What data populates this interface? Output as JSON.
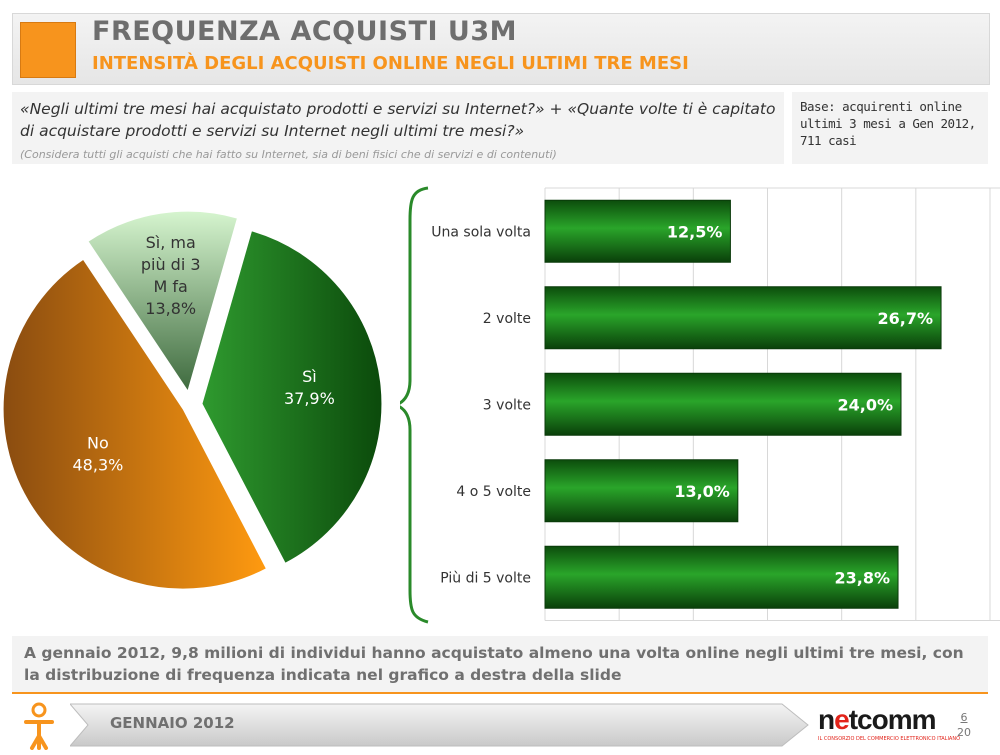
{
  "header": {
    "title": "FREQUENZA ACQUISTI U3M",
    "subtitle": "INTENSITÀ DEGLI ACQUISTI ONLINE NEGLI ULTIMI TRE MESI"
  },
  "question": {
    "text": "«Negli ultimi tre mesi hai acquistato prodotti e servizi su Internet?» + «Quante volte ti è capitato di acquistare prodotti e servizi su Internet negli ultimi tre mesi?»",
    "note": "(Considera tutti gli acquisti che hai fatto su Internet, sia di beni fisici che di servizi e di contenuti)"
  },
  "base": {
    "text": "Base: acquirenti online ultimi 3 mesi a Gen 2012, 711 casi"
  },
  "chart_data": [
    {
      "type": "pie",
      "title": "",
      "slices": [
        {
          "label": "Sì",
          "value": 37.9,
          "value_label": "37,9%",
          "color": "#1f7a1f"
        },
        {
          "label": "No",
          "value": 48.3,
          "value_label": "48,3%",
          "color": "#f7941d"
        },
        {
          "label": "Sì, ma più di 3 M fa",
          "value": 13.8,
          "value_label": "13,8%",
          "color": "#c8eec0"
        }
      ]
    },
    {
      "type": "bar",
      "orientation": "horizontal",
      "title": "",
      "categories": [
        "Una sola volta",
        "2 volte",
        "3 volte",
        "4 o 5 volte",
        "Più di 5 volte"
      ],
      "values": [
        12.5,
        26.7,
        24.0,
        13.0,
        23.8
      ],
      "value_labels": [
        "12,5%",
        "26,7%",
        "24,0%",
        "13,0%",
        "23,8%"
      ],
      "xlim": [
        0,
        30
      ],
      "grid": true,
      "color": "#1f7a1f"
    }
  ],
  "footer": {
    "note": "A gennaio 2012, 9,8 milioni di individui hanno acquistato almeno una volta online negli ultimi tre mesi, con la distribuzione di frequenza indicata nel grafico a destra della slide",
    "date": "GENNAIO 2012",
    "logo_pre": "n",
    "logo_e": "e",
    "logo_post": "tcomm",
    "logo_tagline": "IL CONSORZIO DEL COMMERCIO ELETTRONICO ITALIANO",
    "page_current": "6",
    "page_total": "20"
  }
}
